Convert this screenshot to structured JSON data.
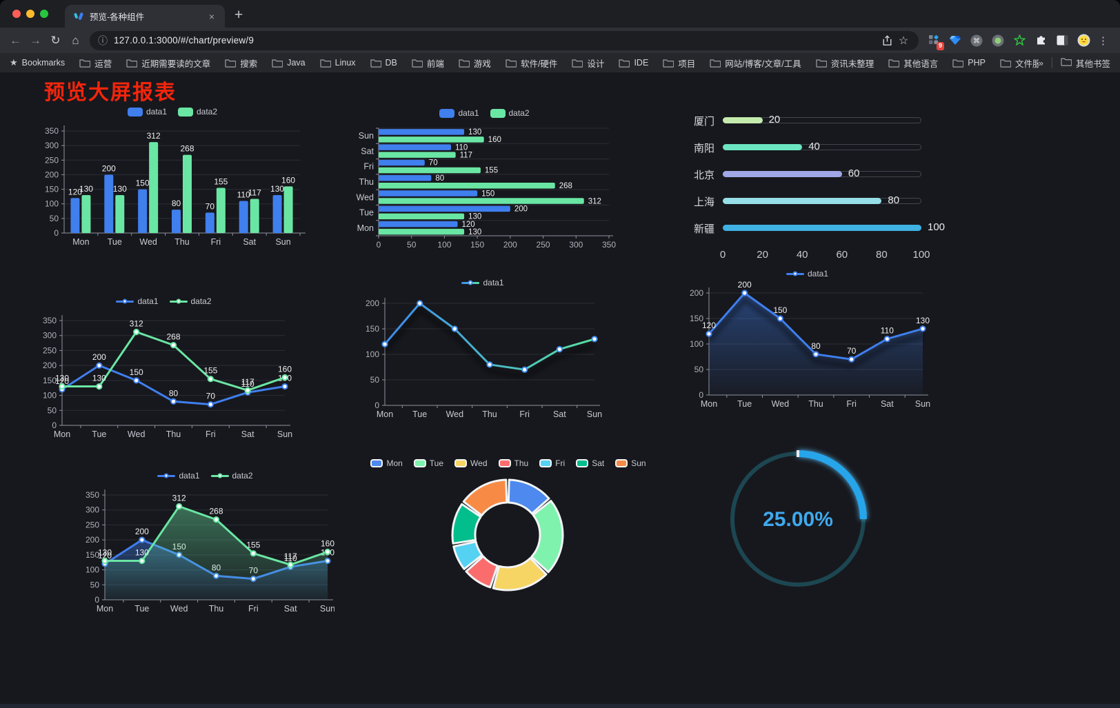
{
  "browser": {
    "tab_title": "预览-各种组件",
    "url": "127.0.0.1:3000/#/chart/preview/9",
    "extensions_badge": "9",
    "bookmarks_label": "Bookmarks",
    "bookmarks": [
      "运营",
      "近期需要读的文章",
      "搜索",
      "Java",
      "Linux",
      "DB",
      "前端",
      "游戏",
      "软件/硬件",
      "设计",
      "IDE",
      "项目",
      "网站/博客/文章/工具",
      "资讯未整理",
      "其他语言",
      "PHP",
      "文件服务器"
    ],
    "overflow_chevron": "»",
    "other_bookmarks": "其他书签"
  },
  "page": {
    "title": "预览大屏报表",
    "title_color": "#F3250C",
    "background": "#17181D"
  },
  "chart_data": [
    {
      "id": "bar-grouped",
      "type": "bar",
      "orientation": "vertical",
      "legend": "top",
      "grid": true,
      "value_labels": true,
      "categories": [
        "Mon",
        "Tue",
        "Wed",
        "Thu",
        "Fri",
        "Sat",
        "Sun"
      ],
      "series": [
        {
          "name": "data1",
          "color": "#3F7FEE",
          "values": [
            120,
            200,
            150,
            80,
            70,
            110,
            130
          ]
        },
        {
          "name": "data2",
          "color": "#6AE6A4",
          "values": [
            130,
            130,
            312,
            268,
            155,
            117,
            160
          ]
        }
      ],
      "ylim": [
        0,
        350
      ],
      "yticks": [
        0,
        50,
        100,
        150,
        200,
        250,
        300,
        350
      ]
    },
    {
      "id": "bar-horizontal",
      "type": "bar",
      "orientation": "horizontal",
      "legend": "top",
      "grid": true,
      "value_labels": true,
      "categories": [
        "Mon",
        "Tue",
        "Wed",
        "Thu",
        "Fri",
        "Sat",
        "Sun"
      ],
      "series": [
        {
          "name": "data1",
          "color": "#3F7FEE",
          "values": [
            120,
            200,
            150,
            80,
            70,
            110,
            130
          ]
        },
        {
          "name": "data2",
          "color": "#6AE6A4",
          "values": [
            130,
            130,
            312,
            268,
            155,
            117,
            160
          ]
        }
      ],
      "xlim": [
        0,
        350
      ],
      "xticks": [
        0,
        50,
        100,
        150,
        200,
        250,
        300,
        350
      ]
    },
    {
      "id": "progress",
      "type": "bar-progress",
      "xlim": [
        0,
        100
      ],
      "xticks": [
        0,
        20,
        40,
        60,
        80,
        100
      ],
      "categories": [
        "厦门",
        "南阳",
        "北京",
        "上海",
        "新疆"
      ],
      "values": [
        20,
        40,
        60,
        80,
        100
      ],
      "colors": [
        "#C4EBAD",
        "#6BE6C1",
        "#A0A7E6",
        "#96DEE8",
        "#3FB1E3"
      ]
    },
    {
      "id": "line-multi",
      "type": "line",
      "legend": "top",
      "grid": true,
      "value_labels": true,
      "categories": [
        "Mon",
        "Tue",
        "Wed",
        "Thu",
        "Fri",
        "Sat",
        "Sun"
      ],
      "series": [
        {
          "name": "data1",
          "color": "#3F7FEE",
          "values": [
            120,
            200,
            150,
            80,
            70,
            110,
            130
          ]
        },
        {
          "name": "data2",
          "color": "#6AE6A4",
          "values": [
            130,
            130,
            312,
            268,
            155,
            117,
            160
          ]
        }
      ],
      "ylim": [
        0,
        350
      ],
      "yticks": [
        0,
        50,
        100,
        150,
        200,
        250,
        300,
        350
      ]
    },
    {
      "id": "line-gradient",
      "type": "line",
      "legend": "top",
      "grid": true,
      "value_labels": false,
      "shadow": true,
      "categories": [
        "Mon",
        "Tue",
        "Wed",
        "Thu",
        "Fri",
        "Sat",
        "Sun"
      ],
      "series": [
        {
          "name": "data1",
          "color": "#3F8EF2",
          "gradient": [
            "#3D8BF0",
            "#55E3A0"
          ],
          "values": [
            120,
            200,
            150,
            80,
            70,
            110,
            130
          ]
        }
      ],
      "ylim": [
        0,
        200
      ],
      "yticks": [
        0,
        50,
        100,
        150,
        200
      ]
    },
    {
      "id": "line-area",
      "type": "line",
      "legend": "top",
      "grid": true,
      "value_labels": true,
      "shadow": true,
      "categories": [
        "Mon",
        "Tue",
        "Wed",
        "Thu",
        "Fri",
        "Sat",
        "Sun"
      ],
      "series": [
        {
          "name": "data1",
          "color": "#3F7FEE",
          "area": true,
          "values": [
            120,
            200,
            150,
            80,
            70,
            110,
            130
          ]
        }
      ],
      "ylim": [
        0,
        200
      ],
      "yticks": [
        0,
        50,
        100,
        150,
        200
      ]
    },
    {
      "id": "line-multi-area",
      "type": "line",
      "legend": "top",
      "grid": true,
      "value_labels": true,
      "categories": [
        "Mon",
        "Tue",
        "Wed",
        "Thu",
        "Fri",
        "Sat",
        "Sun"
      ],
      "series": [
        {
          "name": "data1",
          "color": "#3F7FEE",
          "area": true,
          "values": [
            120,
            200,
            150,
            80,
            70,
            110,
            130
          ]
        },
        {
          "name": "data2",
          "color": "#6AE6A4",
          "area": true,
          "values": [
            130,
            130,
            312,
            268,
            155,
            117,
            160
          ]
        }
      ],
      "ylim": [
        0,
        350
      ],
      "yticks": [
        0,
        50,
        100,
        150,
        200,
        250,
        300,
        350
      ]
    },
    {
      "id": "donut",
      "type": "pie",
      "legend": "top",
      "categories": [
        "Mon",
        "Tue",
        "Wed",
        "Thu",
        "Fri",
        "Sat",
        "Sun"
      ],
      "values": [
        120,
        200,
        150,
        80,
        70,
        110,
        130
      ],
      "colors": [
        "#4D89EE",
        "#7FF2AE",
        "#F6D564",
        "#FB6D6D",
        "#55D1F2",
        "#02BE8D",
        "#F78B46"
      ]
    },
    {
      "id": "gauge",
      "type": "gauge",
      "percent": 25,
      "value_label": "25.00%",
      "color": "#27A5EA",
      "track_color": "#1C4752",
      "text_color": "#3FA9EE"
    }
  ]
}
